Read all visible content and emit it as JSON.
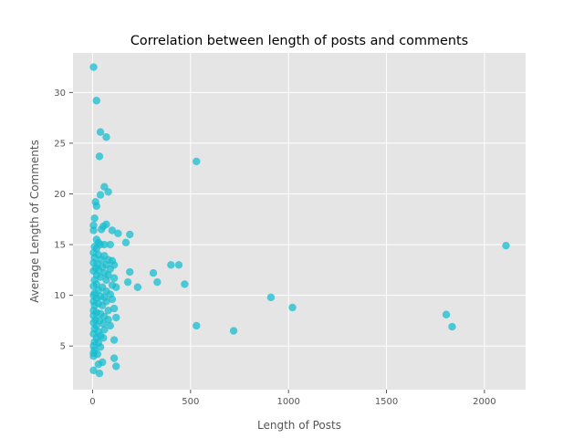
{
  "chart_data": {
    "type": "scatter",
    "title": "Correlation between length of posts and comments",
    "xlabel": "Length of Posts",
    "ylabel": "Average Length of Comments",
    "xlim": [
      -100,
      2210
    ],
    "ylim": [
      0.7,
      33.9
    ],
    "xticks": [
      0,
      500,
      1000,
      1500,
      2000
    ],
    "yticks": [
      5,
      10,
      15,
      20,
      25,
      30
    ],
    "grid": true,
    "marker_color": "#17becf",
    "background_color": "#e5e5e5",
    "grid_color": "#ffffff",
    "points": [
      [
        5,
        32.5
      ],
      [
        20,
        29.2
      ],
      [
        40,
        26.1
      ],
      [
        70,
        25.6
      ],
      [
        35,
        23.7
      ],
      [
        530,
        23.2
      ],
      [
        60,
        20.7
      ],
      [
        80,
        20.2
      ],
      [
        40,
        19.9
      ],
      [
        15,
        19.2
      ],
      [
        20,
        18.8
      ],
      [
        10,
        17.6
      ],
      [
        5,
        16.9
      ],
      [
        70,
        17.0
      ],
      [
        55,
        16.8
      ],
      [
        5,
        16.4
      ],
      [
        45,
        16.5
      ],
      [
        100,
        16.4
      ],
      [
        130,
        16.1
      ],
      [
        190,
        16.0
      ],
      [
        20,
        15.5
      ],
      [
        30,
        15.2
      ],
      [
        170,
        15.2
      ],
      [
        2110,
        14.9
      ],
      [
        10,
        14.8
      ],
      [
        40,
        15.0
      ],
      [
        60,
        15.0
      ],
      [
        90,
        15.0
      ],
      [
        20,
        14.6
      ],
      [
        5,
        14.2
      ],
      [
        30,
        14.0
      ],
      [
        60,
        13.9
      ],
      [
        10,
        13.7
      ],
      [
        45,
        13.5
      ],
      [
        80,
        13.5
      ],
      [
        100,
        13.4
      ],
      [
        5,
        13.2
      ],
      [
        25,
        13.1
      ],
      [
        70,
        13.0
      ],
      [
        110,
        13.0
      ],
      [
        400,
        13.0
      ],
      [
        440,
        13.0
      ],
      [
        15,
        12.7
      ],
      [
        50,
        12.8
      ],
      [
        90,
        12.6
      ],
      [
        5,
        12.4
      ],
      [
        30,
        12.5
      ],
      [
        190,
        12.3
      ],
      [
        310,
        12.2
      ],
      [
        60,
        12.2
      ],
      [
        20,
        12.0
      ],
      [
        80,
        12.0
      ],
      [
        40,
        11.8
      ],
      [
        110,
        11.7
      ],
      [
        10,
        11.5
      ],
      [
        70,
        11.5
      ],
      [
        180,
        11.3
      ],
      [
        330,
        11.3
      ],
      [
        470,
        11.1
      ],
      [
        20,
        11.1
      ],
      [
        100,
        11.0
      ],
      [
        5,
        10.9
      ],
      [
        50,
        10.8
      ],
      [
        120,
        10.8
      ],
      [
        230,
        10.8
      ],
      [
        30,
        10.5
      ],
      [
        70,
        10.4
      ],
      [
        10,
        10.2
      ],
      [
        90,
        10.1
      ],
      [
        5,
        10.0
      ],
      [
        40,
        9.9
      ],
      [
        60,
        9.8
      ],
      [
        910,
        9.8
      ],
      [
        20,
        9.7
      ],
      [
        100,
        9.6
      ],
      [
        5,
        9.4
      ],
      [
        70,
        9.4
      ],
      [
        30,
        9.2
      ],
      [
        10,
        9.0
      ],
      [
        50,
        9.0
      ],
      [
        1020,
        8.8
      ],
      [
        110,
        8.7
      ],
      [
        5,
        8.5
      ],
      [
        80,
        8.5
      ],
      [
        20,
        8.3
      ],
      [
        40,
        8.2
      ],
      [
        1805,
        8.1
      ],
      [
        5,
        8.0
      ],
      [
        60,
        7.9
      ],
      [
        120,
        7.8
      ],
      [
        15,
        7.6
      ],
      [
        80,
        7.6
      ],
      [
        35,
        7.5
      ],
      [
        5,
        7.3
      ],
      [
        55,
        7.2
      ],
      [
        530,
        7.0
      ],
      [
        20,
        7.0
      ],
      [
        90,
        7.0
      ],
      [
        1835,
        6.9
      ],
      [
        10,
        6.7
      ],
      [
        60,
        6.6
      ],
      [
        720,
        6.5
      ],
      [
        30,
        6.4
      ],
      [
        5,
        6.2
      ],
      [
        40,
        6.0
      ],
      [
        20,
        5.8
      ],
      [
        55,
        5.8
      ],
      [
        110,
        5.6
      ],
      [
        10,
        5.4
      ],
      [
        30,
        5.3
      ],
      [
        5,
        5.0
      ],
      [
        40,
        4.9
      ],
      [
        10,
        4.6
      ],
      [
        5,
        4.3
      ],
      [
        25,
        4.2
      ],
      [
        5,
        4.0
      ],
      [
        110,
        3.8
      ],
      [
        50,
        3.4
      ],
      [
        30,
        3.2
      ],
      [
        120,
        3.0
      ],
      [
        5,
        2.6
      ],
      [
        35,
        2.3
      ]
    ]
  }
}
